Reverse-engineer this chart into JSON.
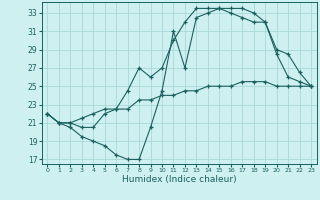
{
  "xlabel": "Humidex (Indice chaleur)",
  "bg_color": "#cff0f0",
  "grid_color": "#a8d8d8",
  "line_color": "#1a6060",
  "xlim": [
    -0.5,
    23.5
  ],
  "ylim": [
    16.5,
    34.2
  ],
  "xticks": [
    0,
    1,
    2,
    3,
    4,
    5,
    6,
    7,
    8,
    9,
    10,
    11,
    12,
    13,
    14,
    15,
    16,
    17,
    18,
    19,
    20,
    21,
    22,
    23
  ],
  "yticks": [
    17,
    19,
    21,
    23,
    25,
    27,
    29,
    31,
    33
  ],
  "line1_x": [
    0,
    1,
    2,
    3,
    4,
    5,
    6,
    7,
    8,
    9,
    10,
    11,
    12,
    13,
    14,
    15,
    16,
    17,
    18,
    19,
    20,
    21,
    22,
    23
  ],
  "line1_y": [
    22.0,
    21.0,
    20.5,
    19.5,
    19.0,
    18.5,
    17.5,
    17.0,
    17.0,
    20.5,
    24.5,
    31.0,
    27.0,
    32.5,
    33.0,
    33.5,
    33.5,
    33.5,
    33.0,
    32.0,
    28.5,
    26.0,
    25.5,
    25.0
  ],
  "line2_x": [
    0,
    1,
    2,
    3,
    4,
    5,
    6,
    7,
    8,
    9,
    10,
    11,
    12,
    13,
    14,
    15,
    16,
    17,
    18,
    19,
    20,
    21,
    22,
    23
  ],
  "line2_y": [
    22.0,
    21.0,
    21.0,
    20.5,
    20.5,
    22.0,
    22.5,
    24.5,
    27.0,
    26.0,
    27.0,
    30.0,
    32.0,
    33.5,
    33.5,
    33.5,
    33.0,
    32.5,
    32.0,
    32.0,
    29.0,
    28.5,
    26.5,
    25.0
  ],
  "line3_x": [
    0,
    1,
    2,
    3,
    4,
    5,
    6,
    7,
    8,
    9,
    10,
    11,
    12,
    13,
    14,
    15,
    16,
    17,
    18,
    19,
    20,
    21,
    22,
    23
  ],
  "line3_y": [
    22.0,
    21.0,
    21.0,
    21.5,
    22.0,
    22.5,
    22.5,
    22.5,
    23.5,
    23.5,
    24.0,
    24.0,
    24.5,
    24.5,
    25.0,
    25.0,
    25.0,
    25.5,
    25.5,
    25.5,
    25.0,
    25.0,
    25.0,
    25.0
  ]
}
